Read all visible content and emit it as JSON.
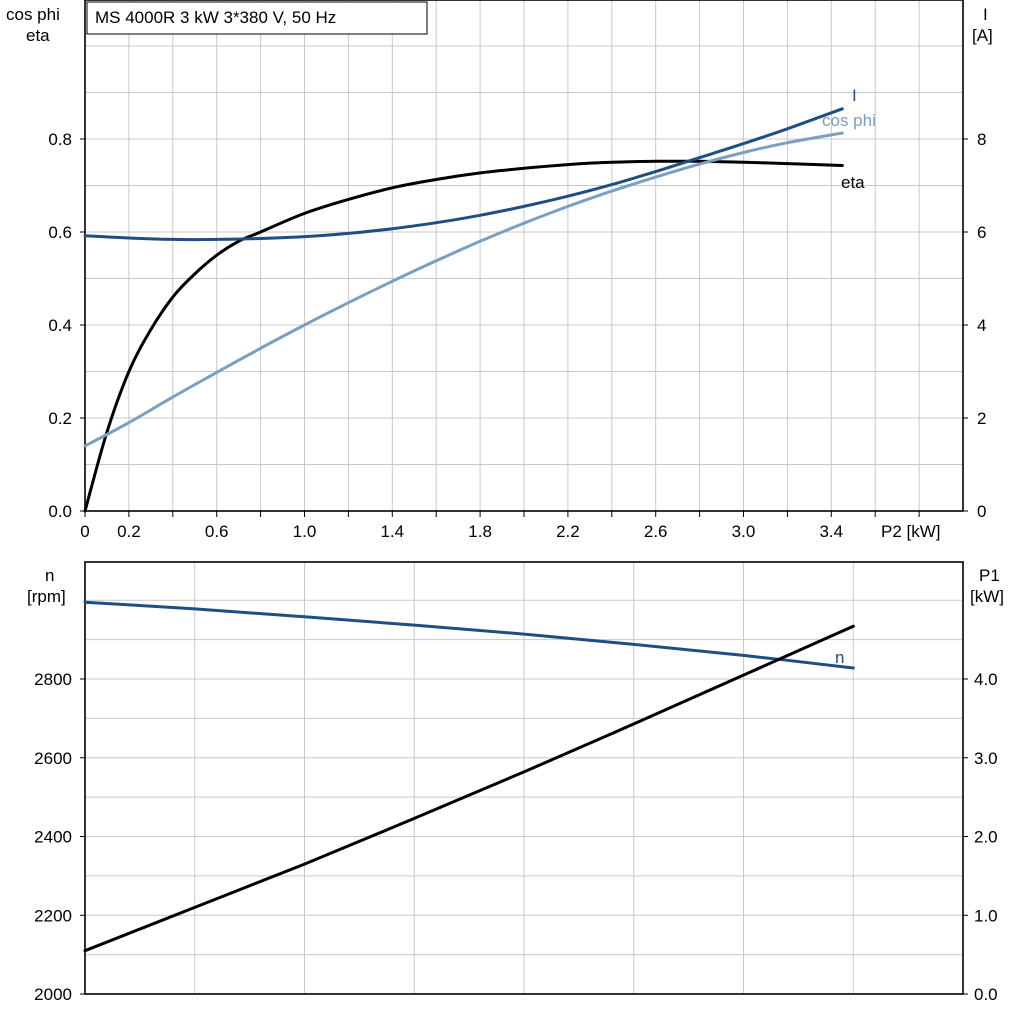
{
  "title": "MS 4000R   3 kW   3*380 V, 50 Hz",
  "colors": {
    "eta": "#000000",
    "I": "#1f4e84",
    "cosphi": "#7b9fc0",
    "n": "#1f4e84",
    "P1": "#000000"
  },
  "chart_data": [
    {
      "type": "line",
      "x_axis": {
        "label": "P2 [kW]",
        "range": [
          0,
          4.0
        ],
        "ticks": [
          "0",
          "0.2",
          "0.6",
          "1.0",
          "1.4",
          "1.8",
          "2.2",
          "2.6",
          "3.0",
          "3.4"
        ]
      },
      "y_left": {
        "label_line1": "cos phi",
        "label_line2": "eta",
        "range": [
          0,
          1.0
        ],
        "ticks": [
          "0.0",
          "0.2",
          "0.4",
          "0.6",
          "0.8"
        ]
      },
      "y_right": {
        "label_line1": "I",
        "label_line2": "[A]",
        "range": [
          0,
          10
        ],
        "ticks": [
          "0",
          "2",
          "4",
          "6",
          "8"
        ]
      },
      "grid": true,
      "series": [
        {
          "name": "eta",
          "axis": "left",
          "label": "eta",
          "x": [
            0,
            0.1,
            0.2,
            0.3,
            0.4,
            0.5,
            0.6,
            0.7,
            0.8,
            1.0,
            1.2,
            1.4,
            1.6,
            1.8,
            2.0,
            2.2,
            2.4,
            2.6,
            2.8,
            3.0,
            3.2,
            3.45
          ],
          "y": [
            0.0,
            0.17,
            0.3,
            0.39,
            0.46,
            0.51,
            0.55,
            0.58,
            0.6,
            0.64,
            0.67,
            0.695,
            0.713,
            0.727,
            0.737,
            0.745,
            0.75,
            0.752,
            0.752,
            0.75,
            0.747,
            0.743
          ]
        },
        {
          "name": "I",
          "axis": "right",
          "label": "I",
          "x": [
            0,
            0.2,
            0.4,
            0.6,
            0.8,
            1.0,
            1.2,
            1.4,
            1.6,
            1.8,
            2.0,
            2.2,
            2.4,
            2.6,
            2.8,
            3.0,
            3.2,
            3.45
          ],
          "y": [
            5.92,
            5.87,
            5.84,
            5.84,
            5.86,
            5.9,
            5.97,
            6.07,
            6.2,
            6.36,
            6.55,
            6.77,
            7.02,
            7.3,
            7.6,
            7.9,
            8.22,
            8.65
          ]
        },
        {
          "name": "cos phi",
          "axis": "left",
          "label": "cos phi",
          "x": [
            0,
            0.2,
            0.4,
            0.6,
            0.8,
            1.0,
            1.2,
            1.4,
            1.6,
            1.8,
            2.0,
            2.2,
            2.4,
            2.6,
            2.8,
            3.0,
            3.2,
            3.45
          ],
          "y": [
            0.14,
            0.19,
            0.245,
            0.298,
            0.35,
            0.4,
            0.448,
            0.494,
            0.538,
            0.58,
            0.619,
            0.655,
            0.688,
            0.718,
            0.746,
            0.771,
            0.792,
            0.813
          ]
        }
      ]
    },
    {
      "type": "line",
      "x_axis": {
        "range": [
          0,
          4.0
        ]
      },
      "y_left": {
        "label_line1": "n",
        "label_line2": "[rpm]",
        "range": [
          2000,
          3100
        ],
        "ticks": [
          "2000",
          "2200",
          "2400",
          "2600",
          "2800"
        ]
      },
      "y_right": {
        "label_line1": "P1",
        "label_line2": "[kW]",
        "range": [
          0,
          5.5
        ],
        "ticks": [
          "0.0",
          "1.0",
          "2.0",
          "3.0",
          "4.0"
        ]
      },
      "grid": true,
      "series": [
        {
          "name": "n",
          "axis": "left",
          "label": "n",
          "x": [
            0,
            0.5,
            1.0,
            1.5,
            2.0,
            2.5,
            3.0,
            3.5
          ],
          "y": [
            2995,
            2978,
            2958,
            2937,
            2914,
            2888,
            2860,
            2828
          ]
        },
        {
          "name": "P1",
          "axis": "right",
          "label": "",
          "x": [
            0,
            0.5,
            1.0,
            1.5,
            2.0,
            2.5,
            3.0,
            3.5
          ],
          "y": [
            0.55,
            1.1,
            1.65,
            2.23,
            2.82,
            3.43,
            4.05,
            4.67
          ]
        }
      ]
    }
  ]
}
